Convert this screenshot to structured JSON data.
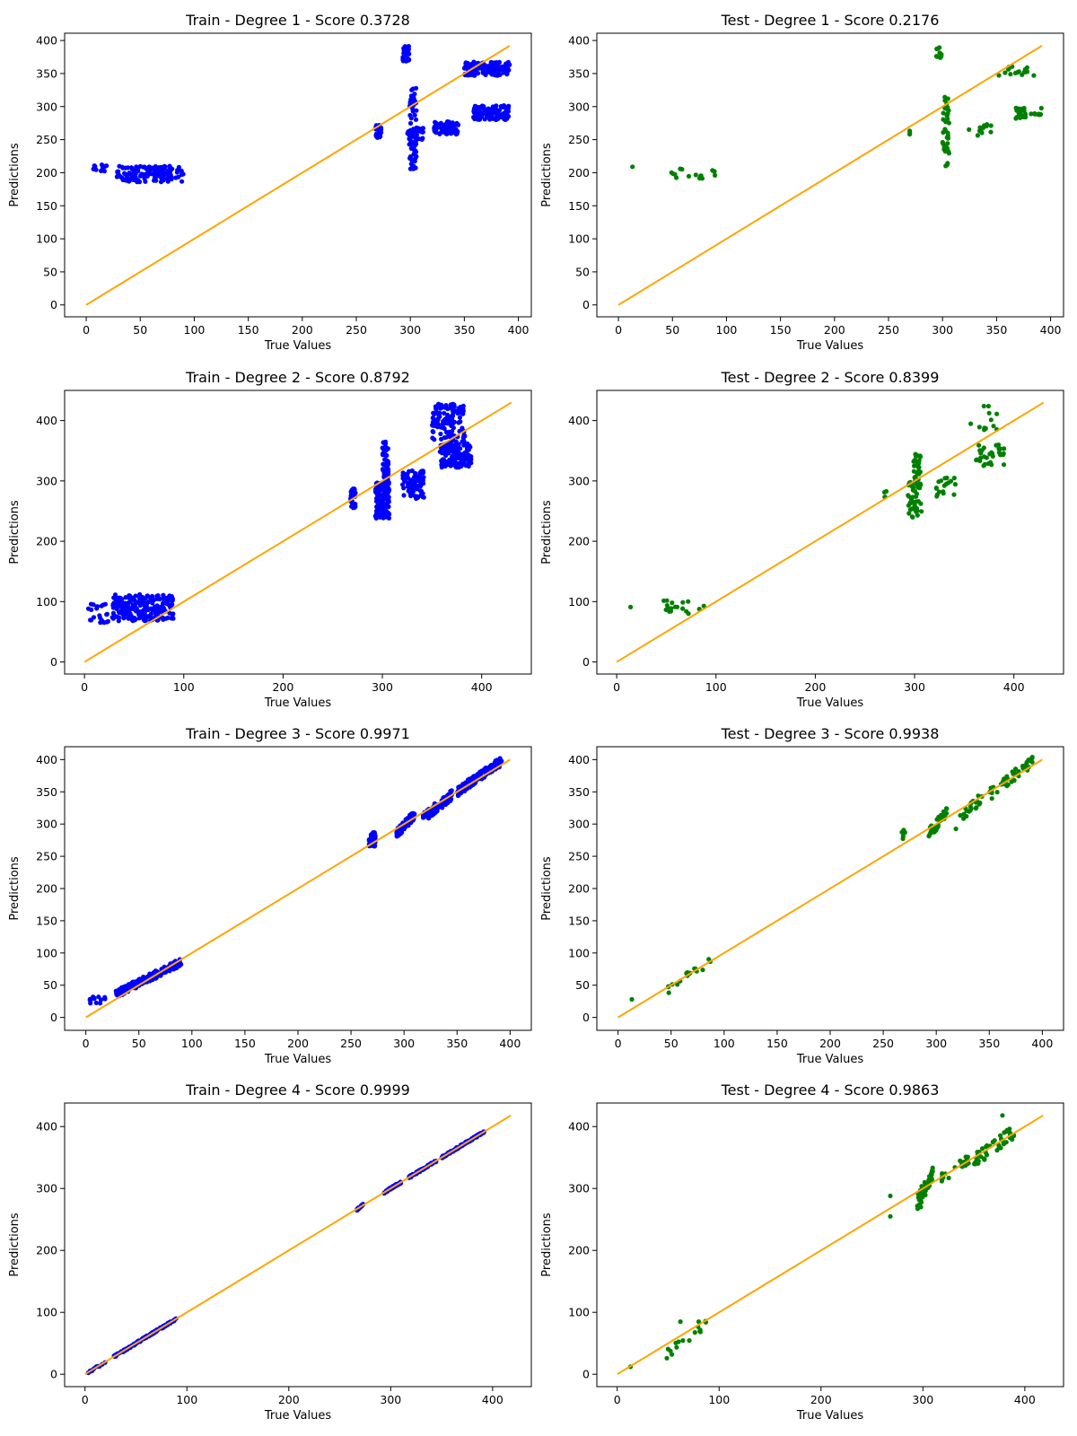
{
  "colors": {
    "train": "#0000ff",
    "test": "#008000",
    "line": "#ffa500"
  },
  "chart_data": [
    {
      "type": "scatter",
      "title": "Train - Degree 1 - Score 0.3728",
      "xlabel": "True Values",
      "ylabel": "Predictions",
      "xlim": [
        -20,
        412
      ],
      "ylim": [
        -18,
        411
      ],
      "xticks": [
        0,
        50,
        100,
        150,
        200,
        250,
        300,
        350,
        400
      ],
      "yticks": [
        0,
        50,
        100,
        150,
        200,
        250,
        300,
        350,
        400
      ],
      "line": [
        [
          0,
          0
        ],
        [
          392,
          392
        ]
      ],
      "color": "train",
      "clusters": [
        {
          "x": [
            5,
            20
          ],
          "y": [
            200,
            212
          ],
          "n": 14
        },
        {
          "x": [
            28,
            90
          ],
          "y": [
            186,
            210
          ],
          "n": 140
        },
        {
          "x": [
            268,
            273
          ],
          "y": [
            253,
            272
          ],
          "n": 35
        },
        {
          "x": [
            293,
            299
          ],
          "y": [
            368,
            392
          ],
          "n": 35
        },
        {
          "x": [
            299,
            306
          ],
          "y": [
            205,
            328
          ],
          "n": 70
        },
        {
          "x": [
            296,
            312
          ],
          "y": [
            250,
            268
          ],
          "n": 25
        },
        {
          "x": [
            322,
            345
          ],
          "y": [
            258,
            278
          ],
          "n": 70
        },
        {
          "x": [
            350,
            392
          ],
          "y": [
            347,
            368
          ],
          "n": 140
        },
        {
          "x": [
            358,
            392
          ],
          "y": [
            280,
            302
          ],
          "n": 120
        }
      ]
    },
    {
      "type": "scatter",
      "title": "Test - Degree 1 - Score 0.2176",
      "xlabel": "True Values",
      "ylabel": "Predictions",
      "xlim": [
        -20,
        412
      ],
      "ylim": [
        -18,
        411
      ],
      "xticks": [
        0,
        50,
        100,
        150,
        200,
        250,
        300,
        350,
        400
      ],
      "yticks": [
        0,
        50,
        100,
        150,
        200,
        250,
        300,
        350,
        400
      ],
      "line": [
        [
          0,
          0
        ],
        [
          392,
          392
        ]
      ],
      "color": "test",
      "points": [
        [
          13,
          209
        ]
      ],
      "clusters": [
        {
          "x": [
            45,
            90
          ],
          "y": [
            190,
            206
          ],
          "n": 16
        },
        {
          "x": [
            268,
            272
          ],
          "y": [
            257,
            268
          ],
          "n": 3
        },
        {
          "x": [
            294,
            299
          ],
          "y": [
            373,
            390
          ],
          "n": 10
        },
        {
          "x": [
            300,
            306
          ],
          "y": [
            210,
            325
          ],
          "n": 38
        },
        {
          "x": [
            322,
            345
          ],
          "y": [
            255,
            275
          ],
          "n": 14
        },
        {
          "x": [
            352,
            385
          ],
          "y": [
            347,
            362
          ],
          "n": 18
        },
        {
          "x": [
            365,
            392
          ],
          "y": [
            282,
            300
          ],
          "n": 30
        }
      ]
    },
    {
      "type": "scatter",
      "title": "Train - Degree 2 - Score 0.8792",
      "xlabel": "True Values",
      "ylabel": "Predictions",
      "xlim": [
        -20,
        450
      ],
      "ylim": [
        -20,
        450
      ],
      "xticks": [
        0,
        100,
        200,
        300,
        400
      ],
      "yticks": [
        0,
        100,
        200,
        300,
        400
      ],
      "line": [
        [
          0,
          0
        ],
        [
          430,
          430
        ]
      ],
      "color": "train",
      "clusters": [
        {
          "x": [
            3,
            25
          ],
          "y": [
            65,
            96
          ],
          "n": 22
        },
        {
          "x": [
            28,
            90
          ],
          "y": [
            68,
            112
          ],
          "n": 220
        },
        {
          "x": [
            268,
            273
          ],
          "y": [
            255,
            287
          ],
          "n": 40
        },
        {
          "x": [
            293,
            307
          ],
          "y": [
            238,
            298
          ],
          "n": 130
        },
        {
          "x": [
            300,
            306
          ],
          "y": [
            290,
            365
          ],
          "n": 60
        },
        {
          "x": [
            320,
            342
          ],
          "y": [
            270,
            318
          ],
          "n": 80
        },
        {
          "x": [
            350,
            383
          ],
          "y": [
            365,
            428
          ],
          "n": 120
        },
        {
          "x": [
            358,
            390
          ],
          "y": [
            322,
            362
          ],
          "n": 130
        }
      ]
    },
    {
      "type": "scatter",
      "title": "Test - Degree 2 - Score 0.8399",
      "xlabel": "True Values",
      "ylabel": "Predictions",
      "xlim": [
        -20,
        450
      ],
      "ylim": [
        -20,
        450
      ],
      "xticks": [
        0,
        100,
        200,
        300,
        400
      ],
      "yticks": [
        0,
        100,
        200,
        300,
        400
      ],
      "line": [
        [
          0,
          0
        ],
        [
          430,
          430
        ]
      ],
      "color": "test",
      "points": [
        [
          14,
          91
        ]
      ],
      "clusters": [
        {
          "x": [
            45,
            90
          ],
          "y": [
            80,
            103
          ],
          "n": 18
        },
        {
          "x": [
            268,
            273
          ],
          "y": [
            273,
            283
          ],
          "n": 4
        },
        {
          "x": [
            293,
            307
          ],
          "y": [
            238,
            300
          ],
          "n": 45
        },
        {
          "x": [
            299,
            306
          ],
          "y": [
            300,
            348
          ],
          "n": 30
        },
        {
          "x": [
            320,
            342
          ],
          "y": [
            273,
            306
          ],
          "n": 18
        },
        {
          "x": [
            350,
            385
          ],
          "y": [
            380,
            425
          ],
          "n": 12
        },
        {
          "x": [
            362,
            390
          ],
          "y": [
            325,
            360
          ],
          "n": 30
        }
      ]
    },
    {
      "type": "scatter",
      "title": "Train - Degree 3 - Score 0.9971",
      "xlabel": "True Values",
      "ylabel": "Predictions",
      "xlim": [
        -20,
        420
      ],
      "ylim": [
        -20,
        420
      ],
      "xticks": [
        0,
        50,
        100,
        150,
        200,
        250,
        300,
        350,
        400
      ],
      "yticks": [
        0,
        50,
        100,
        150,
        200,
        250,
        300,
        350,
        400
      ],
      "line": [
        [
          0,
          0
        ],
        [
          400,
          400
        ]
      ],
      "color": "train",
      "clusters": [
        {
          "x": [
            3,
            20
          ],
          "y": [
            20,
            32
          ],
          "n": 14
        },
        {
          "x": [
            28,
            90
          ],
          "y": [
            36,
            86
          ],
          "n": 200,
          "trend": true,
          "spread": 12
        },
        {
          "x": [
            267,
            273
          ],
          "y": [
            265,
            288
          ],
          "n": 40
        },
        {
          "x": [
            293,
            310
          ],
          "y": [
            285,
            315
          ],
          "n": 90,
          "trend": true,
          "spread": 14
        },
        {
          "x": [
            318,
            345
          ],
          "y": [
            310,
            345
          ],
          "n": 90,
          "trend": true,
          "spread": 16
        },
        {
          "x": [
            350,
            392
          ],
          "y": [
            350,
            398
          ],
          "n": 170,
          "trend": true,
          "spread": 14
        }
      ]
    },
    {
      "type": "scatter",
      "title": "Test - Degree 3 - Score 0.9938",
      "xlabel": "True Values",
      "ylabel": "Predictions",
      "xlim": [
        -20,
        420
      ],
      "ylim": [
        -20,
        420
      ],
      "xticks": [
        0,
        50,
        100,
        150,
        200,
        250,
        300,
        350,
        400
      ],
      "yticks": [
        0,
        50,
        100,
        150,
        200,
        250,
        300,
        350,
        400
      ],
      "line": [
        [
          0,
          0
        ],
        [
          400,
          400
        ]
      ],
      "color": "test",
      "points": [
        [
          13,
          28
        ]
      ],
      "clusters": [
        {
          "x": [
            45,
            90
          ],
          "y": [
            40,
            92
          ],
          "n": 18,
          "trend": true,
          "spread": 14
        },
        {
          "x": [
            267,
            272
          ],
          "y": [
            275,
            292
          ],
          "n": 5
        },
        {
          "x": [
            293,
            310
          ],
          "y": [
            285,
            318
          ],
          "n": 45,
          "trend": true,
          "spread": 16
        },
        {
          "x": [
            318,
            345
          ],
          "y": [
            300,
            345
          ],
          "n": 22,
          "trend": true,
          "spread": 18
        },
        {
          "x": [
            350,
            392
          ],
          "y": [
            345,
            400
          ],
          "n": 45,
          "trend": true,
          "spread": 18
        }
      ]
    },
    {
      "type": "scatter",
      "title": "Train - Degree 4 - Score 0.9999",
      "xlabel": "True Values",
      "ylabel": "Predictions",
      "xlim": [
        -20,
        438
      ],
      "ylim": [
        -20,
        438
      ],
      "xticks": [
        0,
        100,
        200,
        300,
        400
      ],
      "yticks": [
        0,
        100,
        200,
        300,
        400
      ],
      "line": [
        [
          0,
          0
        ],
        [
          418,
          418
        ]
      ],
      "color": "train",
      "clusters": [
        {
          "x": [
            3,
            20
          ],
          "y": [
            3,
            20
          ],
          "n": 12,
          "trend": true,
          "spread": 3
        },
        {
          "x": [
            28,
            90
          ],
          "y": [
            28,
            90
          ],
          "n": 140,
          "trend": true,
          "spread": 3
        },
        {
          "x": [
            267,
            273
          ],
          "y": [
            266,
            274
          ],
          "n": 20,
          "trend": true,
          "spread": 3
        },
        {
          "x": [
            293,
            310
          ],
          "y": [
            293,
            310
          ],
          "n": 50,
          "trend": true,
          "spread": 3
        },
        {
          "x": [
            318,
            345
          ],
          "y": [
            318,
            345
          ],
          "n": 60,
          "trend": true,
          "spread": 3
        },
        {
          "x": [
            350,
            392
          ],
          "y": [
            350,
            392
          ],
          "n": 110,
          "trend": true,
          "spread": 3
        }
      ]
    },
    {
      "type": "scatter",
      "title": "Test - Degree 4 - Score 0.9863",
      "xlabel": "True Values",
      "ylabel": "Predictions",
      "xlim": [
        -20,
        438
      ],
      "ylim": [
        -20,
        438
      ],
      "xticks": [
        0,
        100,
        200,
        300,
        400
      ],
      "yticks": [
        0,
        100,
        200,
        300,
        400
      ],
      "line": [
        [
          0,
          0
        ],
        [
          418,
          418
        ]
      ],
      "color": "test",
      "points": [
        [
          13,
          12
        ],
        [
          62,
          85
        ],
        [
          80,
          85
        ],
        [
          268,
          288
        ],
        [
          268,
          255
        ],
        [
          298,
          270
        ],
        [
          378,
          418
        ]
      ],
      "clusters": [
        {
          "x": [
            45,
            90
          ],
          "y": [
            28,
            82
          ],
          "n": 16,
          "trend": true,
          "spread": 16
        },
        {
          "x": [
            293,
            310
          ],
          "y": [
            275,
            322
          ],
          "n": 55,
          "trend": true,
          "spread": 26
        },
        {
          "x": [
            318,
            345
          ],
          "y": [
            315,
            350
          ],
          "n": 20,
          "trend": true,
          "spread": 20
        },
        {
          "x": [
            350,
            392
          ],
          "y": [
            345,
            395
          ],
          "n": 45,
          "trend": true,
          "spread": 22
        }
      ]
    }
  ]
}
